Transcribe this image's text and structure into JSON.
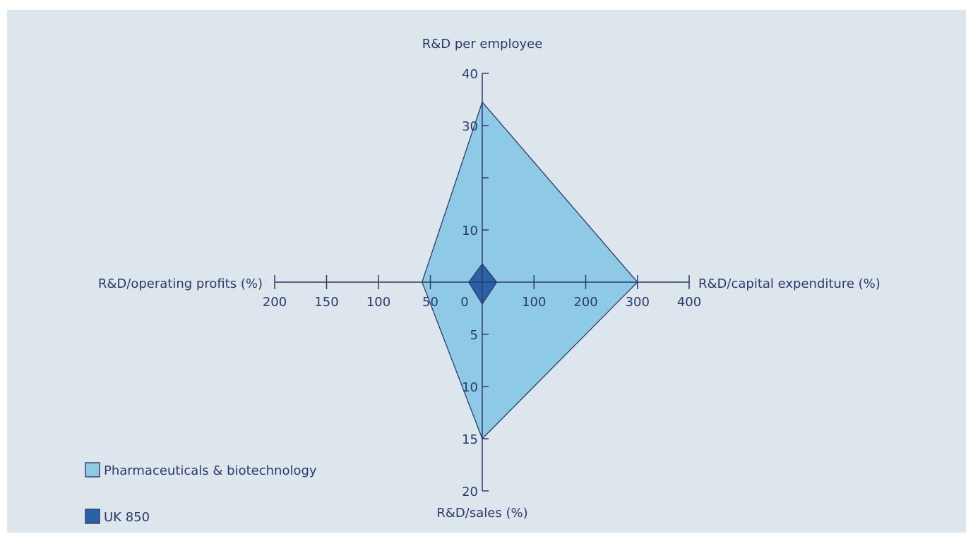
{
  "chart_data": {
    "type": "radar",
    "axes": [
      {
        "key": "rd_per_employee",
        "label": "R&D per employee",
        "direction": "up",
        "max": 40,
        "ticks": [
          {
            "value": 10,
            "label": "10"
          },
          {
            "value": 20,
            "label": ""
          },
          {
            "value": 30,
            "label": "30"
          },
          {
            "value": 40,
            "label": "40"
          }
        ]
      },
      {
        "key": "rd_capex",
        "label": "R&D/capital expenditure (%)",
        "direction": "right",
        "max": 400,
        "ticks": [
          {
            "value": 100,
            "label": "100"
          },
          {
            "value": 200,
            "label": "200"
          },
          {
            "value": 300,
            "label": "300"
          },
          {
            "value": 400,
            "label": "400"
          }
        ]
      },
      {
        "key": "rd_sales",
        "label": "R&D/sales (%)",
        "direction": "down",
        "max": 20,
        "ticks": [
          {
            "value": 5,
            "label": "5"
          },
          {
            "value": 10,
            "label": "10"
          },
          {
            "value": 15,
            "label": "15"
          },
          {
            "value": 20,
            "label": "20"
          }
        ]
      },
      {
        "key": "rd_operating_profits",
        "label": "R&D/operating profits (%)",
        "direction": "left",
        "max": 200,
        "ticks": [
          {
            "value": 50,
            "label": "50"
          },
          {
            "value": 100,
            "label": "100"
          },
          {
            "value": 150,
            "label": "150"
          },
          {
            "value": 200,
            "label": "200"
          }
        ]
      }
    ],
    "origin_label": "0",
    "series": [
      {
        "name": "Pharmaceuticals & biotechnology",
        "color": "#8ecae6",
        "values": {
          "rd_per_employee": 34.5,
          "rd_capex": 300,
          "rd_sales": 15,
          "rd_operating_profits": 58
        }
      },
      {
        "name": "UK 850",
        "color": "#2a62a6",
        "values": {
          "rd_per_employee": 3.5,
          "rd_capex": 28,
          "rd_sales": 2.1,
          "rd_operating_profits": 13
        }
      }
    ],
    "legend_position": "bottom-left",
    "line_color": "#2c3a6b"
  }
}
